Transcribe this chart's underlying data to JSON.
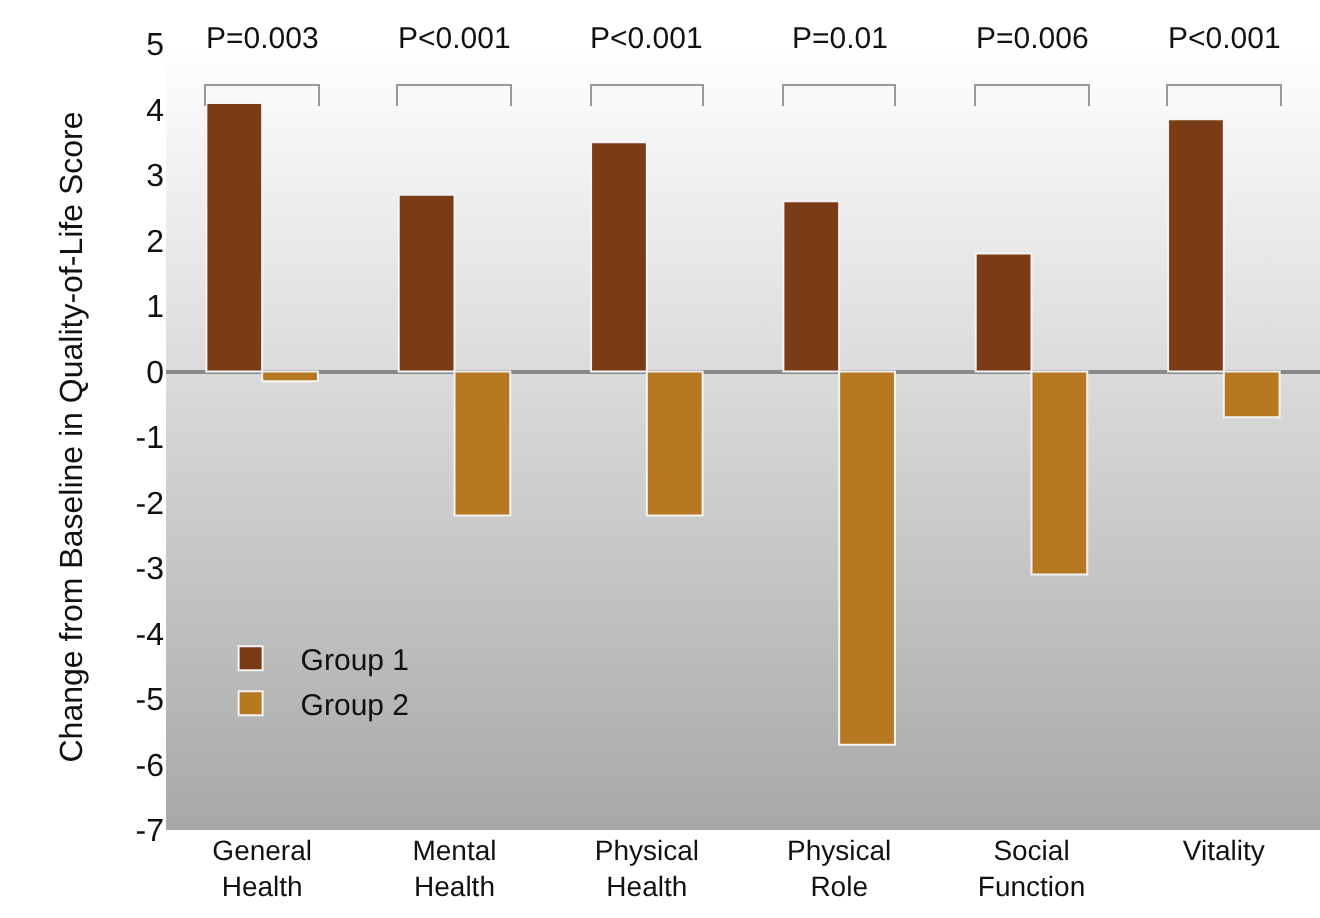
{
  "chart_data": {
    "type": "bar",
    "ylabel": "Change from Baseline in Quality-of-Life Score",
    "categories": [
      "General Health",
      "Mental Health",
      "Physical Health",
      "Physical Role",
      "Social Function",
      "Vitality"
    ],
    "series": [
      {
        "name": "Group 1",
        "color": "#7a3c16",
        "values": [
          4.1,
          2.7,
          3.5,
          2.6,
          1.8,
          3.85
        ]
      },
      {
        "name": "Group 2",
        "color": "#b67820",
        "values": [
          -0.15,
          -2.2,
          -2.2,
          -5.7,
          -3.1,
          -0.7
        ]
      }
    ],
    "ylim": [
      -7,
      5
    ],
    "yticks": [
      -7,
      -6,
      -5,
      -4,
      -3,
      -2,
      -1,
      0,
      1,
      2,
      3,
      4,
      5
    ],
    "legend": "bottom left",
    "annotations": [
      "P=0.003",
      "P<0.001",
      "P<0.001",
      "P=0.01",
      "P=0.006",
      "P<0.001"
    ]
  }
}
